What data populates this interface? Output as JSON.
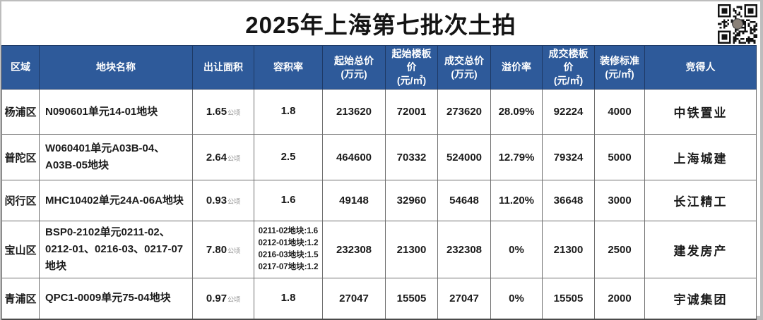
{
  "page": {
    "title": "2025年上海第七批次土拍"
  },
  "colors": {
    "header_bg": "#2e5a9a",
    "header_text": "#ffffff",
    "grid_line": "#6f6f6f",
    "title_text": "#141414"
  },
  "qr": {
    "name": "qr-code"
  },
  "table": {
    "area_unit": "公顷",
    "columns": [
      {
        "label": "区域",
        "unit": ""
      },
      {
        "label": "地块名称",
        "unit": ""
      },
      {
        "label": "出让面积",
        "unit": ""
      },
      {
        "label": "容积率",
        "unit": ""
      },
      {
        "label": "起始总价",
        "unit": "(万元)"
      },
      {
        "label": "起始楼板价",
        "unit": "(元/㎡)"
      },
      {
        "label": "成交总价",
        "unit": "(万元)"
      },
      {
        "label": "溢价率",
        "unit": ""
      },
      {
        "label": "成交楼板价",
        "unit": "(元/㎡)"
      },
      {
        "label": "装修标准",
        "unit": "(元/㎡)"
      },
      {
        "label": "竞得人",
        "unit": ""
      }
    ],
    "rows": [
      {
        "region": "杨浦区",
        "plot_name": "N090601单元14-01地块",
        "area": "1.65",
        "far": [
          "1.8"
        ],
        "start_total": "213620",
        "start_floor": "72001",
        "deal_total": "273620",
        "premium": "28.09%",
        "deal_floor": "92224",
        "decoration": "4000",
        "winner": "中铁置业"
      },
      {
        "region": "普陀区",
        "plot_name": "W060401单元A03B-04、A03B-05地块",
        "area": "2.64",
        "far": [
          "2.5"
        ],
        "start_total": "464600",
        "start_floor": "70332",
        "deal_total": "524000",
        "premium": "12.79%",
        "deal_floor": "79324",
        "decoration": "5000",
        "winner": "上海城建"
      },
      {
        "region": "闵行区",
        "plot_name": "MHC10402单元24A-06A地块",
        "area": "0.93",
        "far": [
          "1.6"
        ],
        "start_total": "49148",
        "start_floor": "32960",
        "deal_total": "54648",
        "premium": "11.20%",
        "deal_floor": "36648",
        "decoration": "3000",
        "winner": "长江精工"
      },
      {
        "region": "宝山区",
        "plot_name": "BSP0-2102单元0211-02、0212-01、0216-03、0217-07地块",
        "area": "7.80",
        "far": [
          "0211-02地块:1.6",
          "0212-01地块:1.2",
          "0216-03地块:1.5",
          "0217-07地块:1.2"
        ],
        "start_total": "232308",
        "start_floor": "21300",
        "deal_total": "232308",
        "premium": "0%",
        "deal_floor": "21300",
        "decoration": "2500",
        "winner": "建发房产"
      },
      {
        "region": "青浦区",
        "plot_name": "QPC1-0009单元75-04地块",
        "area": "0.97",
        "far": [
          "1.8"
        ],
        "start_total": "27047",
        "start_floor": "15505",
        "deal_total": "27047",
        "premium": "0%",
        "deal_floor": "15505",
        "decoration": "2000",
        "winner": "宇诚集团"
      }
    ]
  },
  "chart_data": {
    "type": "table",
    "title": "2025年上海第七批次土拍",
    "headers": [
      "区域",
      "地块名称",
      "出让面积",
      "容积率",
      "起始总价(万元)",
      "起始楼板价(元/㎡)",
      "成交总价(万元)",
      "溢价率",
      "成交楼板价(元/㎡)",
      "装修标准(元/㎡)",
      "竞得人"
    ],
    "rows": [
      [
        "杨浦区",
        "N090601单元14-01地块",
        "1.65公顷",
        "1.8",
        213620,
        72001,
        273620,
        "28.09%",
        92224,
        4000,
        "中铁置业"
      ],
      [
        "普陀区",
        "W060401单元A03B-04、A03B-05地块",
        "2.64公顷",
        "2.5",
        464600,
        70332,
        524000,
        "12.79%",
        79324,
        5000,
        "上海城建"
      ],
      [
        "闵行区",
        "MHC10402单元24A-06A地块",
        "0.93公顷",
        "1.6",
        49148,
        32960,
        54648,
        "11.20%",
        36648,
        3000,
        "长江精工"
      ],
      [
        "宝山区",
        "BSP0-2102单元0211-02、0212-01、0216-03、0217-07地块",
        "7.80公顷",
        "0211-02地块:1.6 / 0212-01地块:1.2 / 0216-03地块:1.5 / 0217-07地块:1.2",
        232308,
        21300,
        232308,
        "0%",
        21300,
        2500,
        "建发房产"
      ],
      [
        "青浦区",
        "QPC1-0009单元75-04地块",
        "0.97公顷",
        "1.8",
        27047,
        15505,
        27047,
        "0%",
        15505,
        2000,
        "宇诚集团"
      ]
    ]
  }
}
